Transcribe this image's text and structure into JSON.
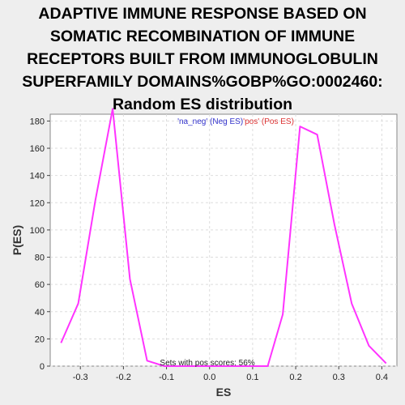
{
  "chart_data": {
    "type": "line",
    "title_lines": [
      "ADAPTIVE IMMUNE RESPONSE BASED ON",
      "SOMATIC RECOMBINATION OF IMMUNE",
      "RECEPTORS BUILT FROM IMMUNOGLOBULIN",
      "SUPERFAMILY DOMAINS%GOBP%GO:0002460:",
      "Random ES distribution"
    ],
    "xlabel": "ES",
    "ylabel": "P(ES)",
    "xlim": [
      -0.37,
      0.435
    ],
    "ylim": [
      0,
      185
    ],
    "x_ticks": [
      -0.3,
      -0.2,
      -0.1,
      0.0,
      0.1,
      0.2,
      0.3,
      0.4
    ],
    "x_tick_labels": [
      "-0.3",
      "-0.2",
      "-0.1",
      "0.0",
      "0.1",
      "0.2",
      "0.3",
      "0.4"
    ],
    "y_ticks": [
      0,
      20,
      40,
      60,
      80,
      100,
      120,
      140,
      160,
      180
    ],
    "y_tick_labels": [
      "0",
      "20",
      "40",
      "60",
      "80",
      "100",
      "120",
      "140",
      "160",
      "180"
    ],
    "grid": true,
    "legend": {
      "placement": "top-center",
      "entries": [
        {
          "text": "'na_neg' (Neg ES)",
          "color": "#3333cc"
        },
        {
          "text": "'pos' (Pos ES)",
          "color": "#dd3333"
        }
      ]
    },
    "annotation": "Sets with pos scores: 56%",
    "series": [
      {
        "color": "#ff33ff",
        "x": [
          -0.345,
          -0.305,
          -0.265,
          -0.225,
          -0.185,
          -0.145,
          -0.105,
          -0.065,
          -0.025,
          0.015,
          0.055,
          0.095,
          0.135,
          0.17,
          0.21,
          0.25,
          0.29,
          0.33,
          0.37,
          0.41
        ],
        "y": [
          17,
          46,
          122,
          189,
          64,
          4,
          0,
          0,
          0,
          0,
          0,
          0,
          0,
          38,
          176,
          170,
          104,
          46,
          15,
          2
        ]
      }
    ]
  }
}
